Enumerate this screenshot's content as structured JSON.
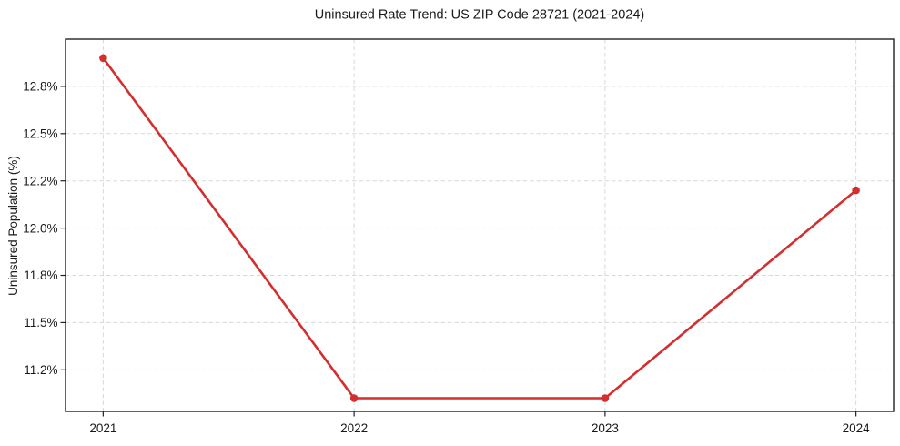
{
  "chart_data": {
    "type": "line",
    "title": "Uninsured Rate Trend: US ZIP Code 28721 (2021-2024)",
    "xlabel": "",
    "ylabel": "Uninsured Population (%)",
    "x": [
      2021,
      2022,
      2023,
      2024
    ],
    "x_tick_labels": [
      "2021",
      "2022",
      "2023",
      "2024"
    ],
    "values": [
      12.9,
      11.1,
      11.1,
      12.2
    ],
    "y_ticks": {
      "values": [
        11.25,
        11.5,
        11.75,
        12.0,
        12.25,
        12.5,
        12.75
      ],
      "labels": [
        "11.2%",
        "11.5%",
        "11.8%",
        "12.0%",
        "12.2%",
        "12.5%",
        "12.8%"
      ]
    },
    "xlim": [
      2020.85,
      2024.15
    ],
    "ylim": [
      11.03,
      13.0
    ],
    "grid": {
      "visible": true,
      "style": "dashed",
      "color": "#d8d8d8"
    },
    "legend": {
      "visible": false
    },
    "line_color": "#d32f2f",
    "marker_color": "#d32f2f",
    "spine_color": "#222222",
    "marker": "circle"
  }
}
